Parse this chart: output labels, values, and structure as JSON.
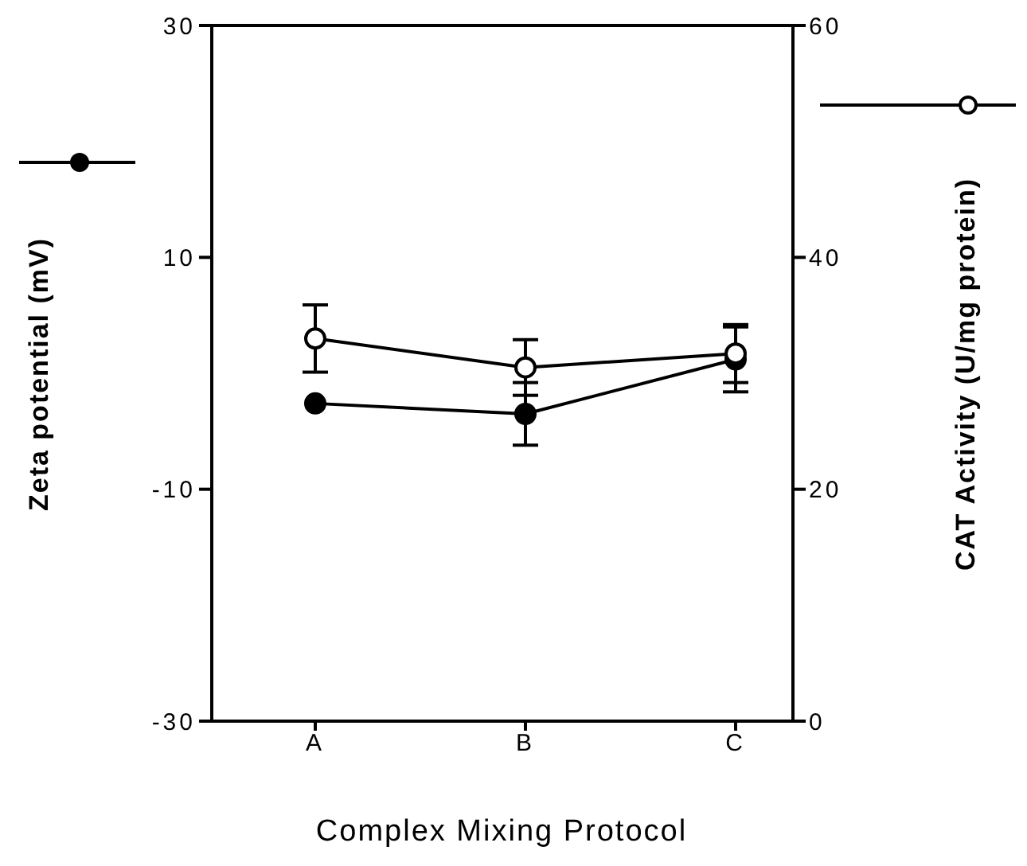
{
  "chart_data": {
    "type": "line",
    "xlabel": "Complex Mixing Protocol",
    "ylabel": "Zeta potential (mV)",
    "y2label": "CAT Activity (U/mg protein)",
    "categories": [
      "A",
      "B",
      "C"
    ],
    "series": [
      {
        "color": "#000000",
        "marker": "circle",
        "values": [
          -2.6,
          -3.5,
          1.2
        ],
        "errors": [
          null,
          2.7,
          2.8
        ]
      },
      {
        "color": "#000000",
        "marker": "circle",
        "axis": "y2",
        "values": [
          33.0,
          30.5,
          31.7
        ],
        "errors": [
          2.9,
          2.4,
          2.5
        ]
      }
    ],
    "ylim": [
      -30,
      30
    ],
    "yticks": [
      -30,
      -10,
      10,
      30
    ],
    "y2lim": [
      0,
      60
    ],
    "y2ticks": [
      0,
      20,
      40,
      60
    ],
    "grid": false
  }
}
